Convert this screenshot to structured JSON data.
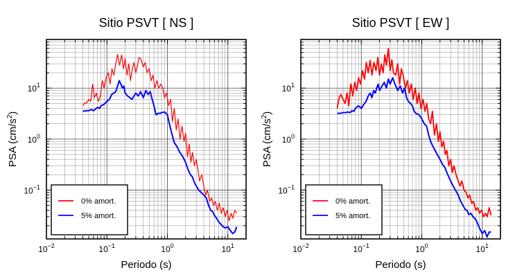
{
  "chart_data": [
    {
      "type": "line",
      "title": "Sitio PSVT [ NS ]",
      "xlabel": "Periodo (s)",
      "ylabel_base": "PSA (cm/s",
      "ylabel_sup": "2",
      "ylabel_end": ")",
      "xscale": "log",
      "yscale": "log",
      "xlim": [
        0.01,
        20
      ],
      "ylim": [
        0.011,
        90
      ],
      "xticks": [
        {
          "value": 0.01,
          "base": "10",
          "exp": "−2"
        },
        {
          "value": 0.1,
          "base": "10",
          "exp": "−1"
        },
        {
          "value": 1,
          "base": "10",
          "exp": "0"
        },
        {
          "value": 10,
          "base": "10",
          "exp": "1"
        }
      ],
      "yticks": [
        {
          "value": 0.1,
          "base": "10",
          "exp": "−1"
        },
        {
          "value": 1,
          "base": "10",
          "exp": "0"
        },
        {
          "value": 10,
          "base": "10",
          "exp": "1"
        }
      ],
      "grid": true,
      "legend_position": "bottom-left",
      "series": [
        {
          "name": "0% amort.",
          "color": "#ff0000",
          "stroke_width": 1.2,
          "x": [
            0.04,
            0.043,
            0.046,
            0.05,
            0.054,
            0.058,
            0.062,
            0.067,
            0.072,
            0.078,
            0.084,
            0.09,
            0.097,
            0.105,
            0.113,
            0.121,
            0.13,
            0.14,
            0.15,
            0.162,
            0.175,
            0.188,
            0.2,
            0.215,
            0.23,
            0.245,
            0.26,
            0.28,
            0.3,
            0.32,
            0.34,
            0.37,
            0.4,
            0.43,
            0.46,
            0.5,
            0.54,
            0.58,
            0.62,
            0.67,
            0.72,
            0.78,
            0.84,
            0.9,
            0.97,
            1.05,
            1.13,
            1.21,
            1.3,
            1.4,
            1.5,
            1.62,
            1.75,
            1.88,
            2.0,
            2.15,
            2.3,
            2.45,
            2.6,
            2.8,
            3.0,
            3.2,
            3.4,
            3.7,
            4.0,
            4.3,
            4.6,
            5.0,
            5.4,
            5.8,
            6.2,
            6.7,
            7.2,
            7.8,
            8.4,
            9.0,
            9.7,
            10.5,
            11.3,
            12.1,
            13.0,
            14.0
          ],
          "y": [
            4.5,
            5.2,
            5.0,
            6.0,
            5.5,
            12.0,
            6.5,
            8.0,
            5.5,
            7.0,
            14.0,
            10.0,
            16.0,
            20.0,
            12.0,
            24.0,
            18.0,
            30.0,
            46.0,
            28.0,
            45.0,
            24.0,
            38.0,
            18.0,
            30.0,
            14.0,
            22.0,
            32.0,
            20.0,
            28.0,
            40.0,
            36.0,
            26.0,
            32.0,
            20.0,
            24.0,
            14.0,
            18.0,
            10.0,
            14.0,
            10.0,
            12.0,
            10.0,
            6.5,
            8.0,
            4.5,
            6.0,
            2.2,
            4.0,
            1.5,
            2.5,
            1.0,
            1.8,
            0.9,
            1.3,
            0.45,
            0.8,
            0.35,
            0.55,
            0.3,
            0.4,
            0.25,
            0.15,
            0.2,
            0.12,
            0.08,
            0.1,
            0.06,
            0.07,
            0.05,
            0.06,
            0.04,
            0.055,
            0.035,
            0.045,
            0.03,
            0.04,
            0.025,
            0.035,
            0.028,
            0.04,
            0.035
          ]
        },
        {
          "name": "5% amort.",
          "color": "#0000ff",
          "stroke_width": 2.0,
          "x": [
            0.04,
            0.045,
            0.05,
            0.055,
            0.06,
            0.065,
            0.07,
            0.075,
            0.08,
            0.09,
            0.1,
            0.11,
            0.12,
            0.13,
            0.14,
            0.15,
            0.16,
            0.17,
            0.18,
            0.19,
            0.2,
            0.22,
            0.24,
            0.26,
            0.28,
            0.3,
            0.33,
            0.36,
            0.4,
            0.44,
            0.48,
            0.52,
            0.56,
            0.6,
            0.65,
            0.7,
            0.75,
            0.8,
            0.9,
            1.0,
            1.1,
            1.2,
            1.3,
            1.4,
            1.5,
            1.6,
            1.8,
            2.0,
            2.2,
            2.4,
            2.6,
            2.8,
            3.0,
            3.3,
            3.6,
            4.0,
            4.4,
            4.8,
            5.2,
            5.6,
            6.0,
            6.5,
            7.0,
            7.5,
            8.0,
            9.0,
            10.0,
            11.0,
            12.0,
            13.0,
            14.0
          ],
          "y": [
            3.5,
            3.6,
            3.6,
            3.8,
            3.6,
            3.9,
            4.2,
            4.0,
            4.5,
            4.8,
            5.5,
            6.0,
            7.5,
            8.0,
            8.5,
            11.0,
            14.0,
            12.0,
            10.0,
            11.0,
            8.0,
            7.0,
            6.5,
            6.0,
            7.0,
            8.0,
            7.0,
            8.5,
            6.5,
            9.0,
            7.5,
            8.5,
            6.0,
            4.5,
            3.0,
            3.2,
            3.2,
            3.3,
            3.4,
            3.0,
            1.8,
            1.2,
            0.85,
            0.75,
            0.65,
            0.55,
            0.45,
            0.35,
            0.25,
            0.2,
            0.18,
            0.14,
            0.12,
            0.1,
            0.09,
            0.08,
            0.07,
            0.05,
            0.04,
            0.038,
            0.032,
            0.028,
            0.024,
            0.022,
            0.02,
            0.018,
            0.019,
            0.016,
            0.014,
            0.015,
            0.019
          ]
        }
      ]
    },
    {
      "type": "line",
      "title": "Sitio PSVT [ EW ]",
      "xlabel": "Periodo (s)",
      "ylabel_base": "PSA (cm/s",
      "ylabel_sup": "2",
      "ylabel_end": ")",
      "xscale": "log",
      "yscale": "log",
      "xlim": [
        0.01,
        20
      ],
      "ylim": [
        0.011,
        90
      ],
      "xticks": [
        {
          "value": 0.01,
          "base": "10",
          "exp": "−2"
        },
        {
          "value": 0.1,
          "base": "10",
          "exp": "−1"
        },
        {
          "value": 1,
          "base": "10",
          "exp": "0"
        },
        {
          "value": 10,
          "base": "10",
          "exp": "1"
        }
      ],
      "yticks": [
        {
          "value": 0.1,
          "base": "10",
          "exp": "−1"
        },
        {
          "value": 1,
          "base": "10",
          "exp": "0"
        },
        {
          "value": 10,
          "base": "10",
          "exp": "1"
        }
      ],
      "grid": true,
      "legend_position": "bottom-left",
      "series": [
        {
          "name": "0% amort.",
          "color": "#ff0000",
          "stroke_width": 1.8,
          "x": [
            0.04,
            0.043,
            0.046,
            0.05,
            0.054,
            0.058,
            0.062,
            0.067,
            0.072,
            0.078,
            0.084,
            0.09,
            0.097,
            0.105,
            0.113,
            0.121,
            0.13,
            0.14,
            0.15,
            0.162,
            0.175,
            0.188,
            0.2,
            0.215,
            0.23,
            0.245,
            0.26,
            0.28,
            0.3,
            0.32,
            0.34,
            0.37,
            0.4,
            0.43,
            0.46,
            0.5,
            0.54,
            0.58,
            0.62,
            0.67,
            0.72,
            0.78,
            0.84,
            0.9,
            0.97,
            1.05,
            1.13,
            1.21,
            1.3,
            1.4,
            1.5,
            1.62,
            1.75,
            1.88,
            2.0,
            2.15,
            2.3,
            2.45,
            2.6,
            2.8,
            3.0,
            3.2,
            3.4,
            3.7,
            4.0,
            4.3,
            4.6,
            5.0,
            5.4,
            5.8,
            6.2,
            6.7,
            7.2,
            7.8,
            8.4,
            9.0,
            9.7,
            10.5,
            11.3,
            12.1,
            13.0,
            14.0
          ],
          "y": [
            4.0,
            6.5,
            7.5,
            6.0,
            5.0,
            8.0,
            4.5,
            12.0,
            7.0,
            13.0,
            9.0,
            16.0,
            12.0,
            22.0,
            15.0,
            32.0,
            20.0,
            35.0,
            18.0,
            32.0,
            22.0,
            40.0,
            18.0,
            30.0,
            20.0,
            45.0,
            28.0,
            60.0,
            22.0,
            36.0,
            20.0,
            18.0,
            30.0,
            12.0,
            24.0,
            16.0,
            10.0,
            14.0,
            8.0,
            12.0,
            6.0,
            10.0,
            5.0,
            8.0,
            4.0,
            6.0,
            3.5,
            5.0,
            2.5,
            2.0,
            3.5,
            1.2,
            2.0,
            0.9,
            1.4,
            0.7,
            0.9,
            0.5,
            0.6,
            0.3,
            0.4,
            0.22,
            0.3,
            0.2,
            0.15,
            0.12,
            0.15,
            0.1,
            0.09,
            0.07,
            0.08,
            0.055,
            0.06,
            0.04,
            0.045,
            0.035,
            0.04,
            0.03,
            0.035,
            0.03,
            0.045,
            0.032
          ]
        },
        {
          "name": "5% amort.",
          "color": "#0000ff",
          "stroke_width": 2.0,
          "x": [
            0.04,
            0.045,
            0.05,
            0.055,
            0.06,
            0.065,
            0.07,
            0.075,
            0.08,
            0.09,
            0.1,
            0.11,
            0.12,
            0.13,
            0.14,
            0.15,
            0.16,
            0.17,
            0.18,
            0.19,
            0.2,
            0.22,
            0.24,
            0.26,
            0.28,
            0.3,
            0.33,
            0.36,
            0.4,
            0.44,
            0.48,
            0.52,
            0.56,
            0.6,
            0.65,
            0.7,
            0.75,
            0.8,
            0.9,
            1.0,
            1.1,
            1.2,
            1.3,
            1.4,
            1.5,
            1.6,
            1.8,
            2.0,
            2.2,
            2.4,
            2.6,
            2.8,
            3.0,
            3.3,
            3.6,
            4.0,
            4.4,
            4.8,
            5.2,
            5.6,
            6.0,
            6.5,
            7.0,
            7.5,
            8.0,
            9.0,
            10.0,
            11.0,
            12.0,
            13.0,
            14.0
          ],
          "y": [
            3.2,
            3.2,
            3.3,
            3.3,
            3.4,
            3.3,
            3.6,
            3.5,
            4.0,
            4.5,
            4.0,
            4.8,
            5.5,
            7.0,
            8.0,
            6.5,
            9.0,
            8.0,
            10.0,
            12.0,
            9.0,
            11.0,
            13.0,
            10.0,
            15.0,
            12.0,
            16.0,
            12.0,
            9.0,
            11.0,
            8.0,
            10.0,
            6.5,
            5.5,
            5.0,
            4.5,
            3.5,
            3.2,
            3.0,
            2.5,
            2.0,
            1.8,
            1.2,
            0.9,
            0.75,
            0.65,
            0.5,
            0.4,
            0.32,
            0.28,
            0.22,
            0.18,
            0.15,
            0.12,
            0.1,
            0.08,
            0.06,
            0.05,
            0.042,
            0.04,
            0.033,
            0.035,
            0.03,
            0.028,
            0.025,
            0.018,
            0.014,
            0.016,
            0.012,
            0.015,
            0.015
          ]
        }
      ]
    }
  ]
}
